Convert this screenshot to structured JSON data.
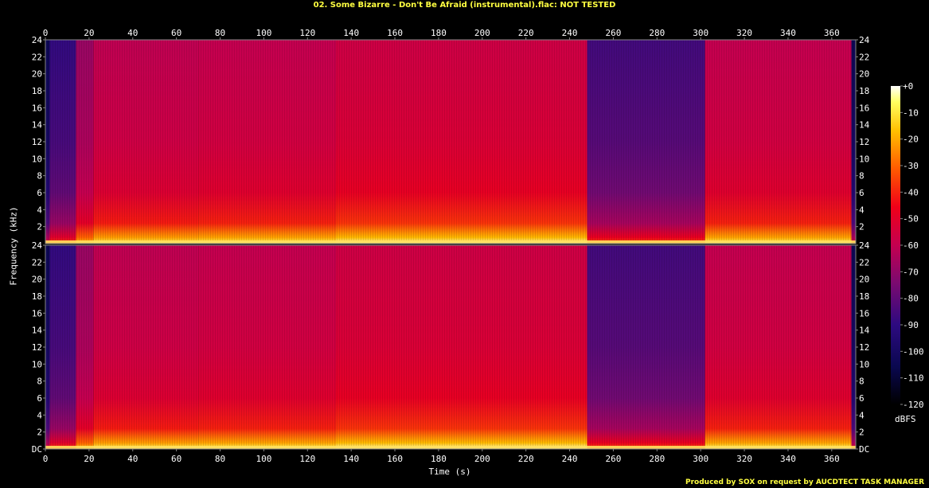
{
  "title": "02. Some Bizarre - Don't Be Afraid (instrumental).flac: NOT TESTED",
  "footer": "Produced by SOX on request by AUCDTECT TASK MANAGER",
  "chart_data": {
    "type": "heatmap",
    "title": "02. Some Bizarre - Don't Be Afraid (instrumental).flac: NOT TESTED",
    "xlabel": "Time (s)",
    "ylabel": "Frequency (kHz)",
    "xlim": [
      0,
      371
    ],
    "ylim": [
      0,
      24
    ],
    "x_ticks": [
      "0",
      "20",
      "40",
      "60",
      "80",
      "100",
      "120",
      "140",
      "160",
      "180",
      "200",
      "220",
      "240",
      "260",
      "280",
      "300",
      "320",
      "340",
      "360"
    ],
    "y_ticks_top": [
      "2",
      "4",
      "6",
      "8",
      "10",
      "12",
      "14",
      "16",
      "18",
      "20",
      "22",
      "24"
    ],
    "y_ticks_bottom": [
      "DC",
      "2",
      "4",
      "6",
      "8",
      "10",
      "12",
      "14",
      "16",
      "18",
      "20",
      "22",
      "24"
    ],
    "channels": 2,
    "colorbar": {
      "label": "dBFS",
      "ticks": [
        "+0",
        "-10",
        "-20",
        "-30",
        "-40",
        "-50",
        "-60",
        "-70",
        "-80",
        "-90",
        "-100",
        "-110",
        "-120"
      ],
      "range": [
        -120,
        0
      ]
    },
    "segments_db": [
      {
        "t": [
          0,
          2
        ],
        "db": -100
      },
      {
        "t": [
          2,
          14
        ],
        "db": -85
      },
      {
        "t": [
          14,
          22
        ],
        "db": -65
      },
      {
        "t": [
          22,
          70
        ],
        "db": -57
      },
      {
        "t": [
          70,
          133
        ],
        "db": -56
      },
      {
        "t": [
          133,
          248
        ],
        "db": -53
      },
      {
        "t": [
          248,
          302
        ],
        "db": -82
      },
      {
        "t": [
          302,
          369
        ],
        "db": -56
      },
      {
        "t": [
          369,
          371
        ],
        "db": -100
      }
    ]
  }
}
